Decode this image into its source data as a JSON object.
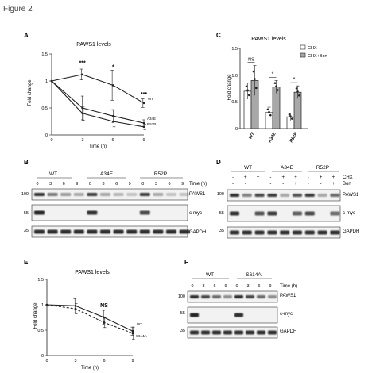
{
  "figure": {
    "title": "Figure 2",
    "panel_letters": [
      "A",
      "B",
      "C",
      "D",
      "E",
      "F"
    ]
  },
  "chart_data": [
    {
      "panel": "A",
      "type": "line",
      "title": "PAWS1 levels",
      "xlabel": "Time (h)",
      "ylabel": "Fold change",
      "xlim": [
        0,
        9
      ],
      "ylim": [
        0,
        1.5
      ],
      "xticks": [
        "0",
        "3",
        "6",
        "9"
      ],
      "yticks": [
        "0",
        "0.5",
        "1",
        "1.5"
      ],
      "x": [
        0,
        3,
        6,
        9
      ],
      "series": [
        {
          "name": "WT",
          "values": [
            1.0,
            1.12,
            0.92,
            0.59
          ],
          "errors": [
            0.0,
            0.1,
            0.28,
            0.08
          ]
        },
        {
          "name": "A34E",
          "values": [
            1.0,
            0.5,
            0.35,
            0.22
          ],
          "errors": [
            0.0,
            0.22,
            0.12,
            0.06
          ]
        },
        {
          "name": "R52P",
          "values": [
            1.0,
            0.4,
            0.25,
            0.15
          ],
          "errors": [
            0.0,
            0.13,
            0.1,
            0.05
          ]
        }
      ],
      "annotations": [
        {
          "x": 3,
          "y": 1.3,
          "text": "***"
        },
        {
          "x": 6,
          "y": 1.23,
          "text": "*"
        },
        {
          "x": 9,
          "y": 0.72,
          "text": "***"
        }
      ]
    },
    {
      "panel": "C",
      "type": "bar",
      "title": "PAWS1 levels",
      "ylabel": "Fold change",
      "ylim": [
        0,
        1.5
      ],
      "yticks": [
        "0",
        "0.5",
        "1.0",
        "1.5"
      ],
      "categories": [
        "WT",
        "A34E",
        "R52P"
      ],
      "series": [
        {
          "name": "CHX",
          "values": [
            0.7,
            0.3,
            0.22
          ],
          "errors": [
            0.15,
            0.1,
            0.07
          ],
          "color": "#ffffff"
        },
        {
          "name": "CHX+Bort",
          "values": [
            0.9,
            0.78,
            0.68
          ],
          "errors": [
            0.28,
            0.12,
            0.12
          ],
          "color": "#a8a8a8"
        }
      ],
      "significance": [
        {
          "category": "WT",
          "text": "NS"
        },
        {
          "category": "A34E",
          "text": "*"
        },
        {
          "category": "R52P",
          "text": "*"
        }
      ],
      "legend_position": "right"
    },
    {
      "panel": "E",
      "type": "line",
      "title": "PAWS1 levels",
      "xlabel": "Time (h)",
      "ylabel": "Fold change",
      "xlim": [
        0,
        9
      ],
      "ylim": [
        0,
        1.5
      ],
      "xticks": [
        "0",
        "3",
        "6",
        "9"
      ],
      "yticks": [
        "0",
        "0.5",
        "1",
        "1.5"
      ],
      "x": [
        0,
        3,
        6,
        9
      ],
      "series": [
        {
          "name": "WT",
          "values": [
            1.0,
            0.98,
            0.75,
            0.48
          ],
          "errors": [
            0.0,
            0.14,
            0.14,
            0.08
          ],
          "dashed": false
        },
        {
          "name": "S614A",
          "values": [
            1.0,
            0.92,
            0.65,
            0.44
          ],
          "errors": [
            0.0,
            0.1,
            0.1,
            0.12
          ],
          "dashed": true
        }
      ],
      "annotations": [
        {
          "x": 6,
          "y": 0.95,
          "text": "NS"
        }
      ]
    }
  ],
  "blots": {
    "B": {
      "groups": [
        "WT",
        "A34E",
        "R52P"
      ],
      "time_label": "Time (h)",
      "lanes": [
        "0",
        "3",
        "6",
        "9",
        "0",
        "3",
        "6",
        "9",
        "0",
        "3",
        "6",
        "9"
      ],
      "rows": [
        {
          "label": "PAWS1",
          "marker": "100"
        },
        {
          "label": "c-myc",
          "marker": "55"
        },
        {
          "label": "GAPDH",
          "marker": "35"
        }
      ]
    },
    "D": {
      "groups": [
        "WT",
        "A34E",
        "R52P"
      ],
      "treatment_labels": [
        "CHX",
        "Bort"
      ],
      "chx": [
        "-",
        "+",
        "+",
        "-",
        "+",
        "+",
        "-",
        "+",
        "+"
      ],
      "bort": [
        "-",
        "-",
        "+",
        "-",
        "-",
        "+",
        "-",
        "-",
        "+"
      ],
      "rows": [
        {
          "label": "PAWS1",
          "marker": "100"
        },
        {
          "label": "c-myc",
          "marker": "55"
        },
        {
          "label": "GAPDH",
          "marker": "35"
        }
      ]
    },
    "F": {
      "groups": [
        "WT",
        "S614A"
      ],
      "time_label": "Time (h)",
      "lanes": [
        "0",
        "3",
        "6",
        "9",
        "0",
        "3",
        "6",
        "9"
      ],
      "rows": [
        {
          "label": "PAWS1",
          "marker": "100"
        },
        {
          "label": "c-myc",
          "marker": "55"
        },
        {
          "label": "GAPDH",
          "marker": "35"
        }
      ]
    }
  }
}
